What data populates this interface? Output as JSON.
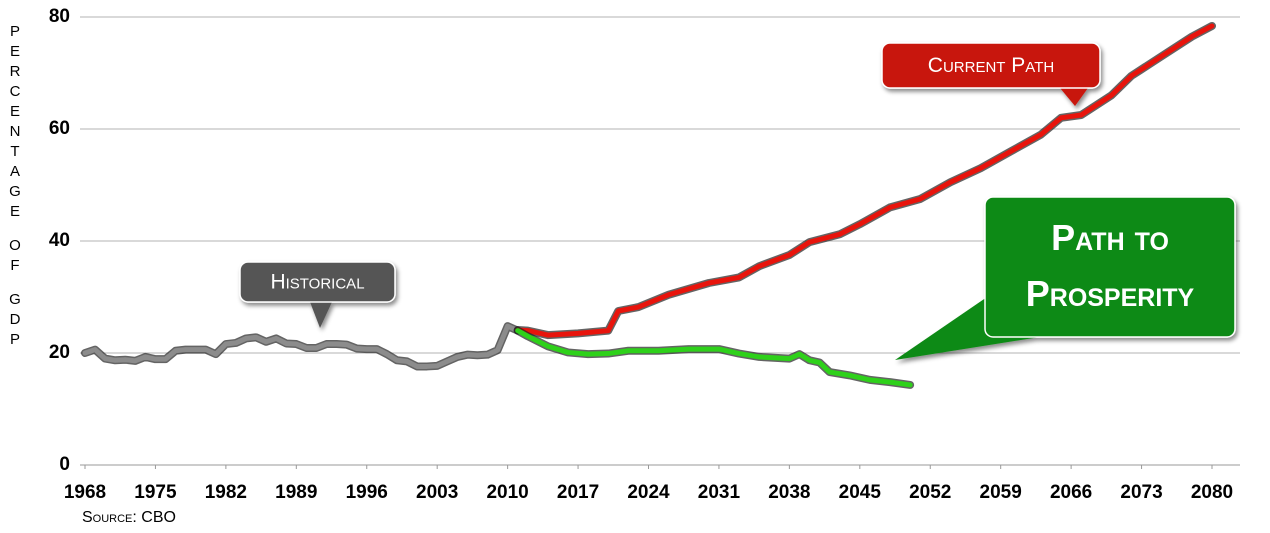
{
  "chart_data": {
    "type": "line",
    "y_label": "PERCENTAGE OF GDP",
    "source": "Source: CBO",
    "xlim": [
      1968,
      2080
    ],
    "xticks": [
      1968,
      1975,
      1982,
      1989,
      1996,
      2003,
      2010,
      2017,
      2024,
      2031,
      2038,
      2045,
      2052,
      2059,
      2066,
      2073,
      2080
    ],
    "ylim": [
      0,
      80
    ],
    "yticks": [
      0,
      20,
      40,
      60,
      80
    ],
    "grid": true,
    "series": [
      {
        "name": "Historical",
        "color": "#8c8c8c",
        "x": [
          1968,
          1969,
          1970,
          1971,
          1972,
          1973,
          1974,
          1975,
          1976,
          1977,
          1978,
          1979,
          1980,
          1981,
          1982,
          1983,
          1984,
          1985,
          1986,
          1987,
          1988,
          1989,
          1990,
          1991,
          1992,
          1993,
          1994,
          1995,
          1996,
          1997,
          1998,
          1999,
          2000,
          2001,
          2002,
          2003,
          2004,
          2005,
          2006,
          2007,
          2008,
          2009,
          2010,
          2011
        ],
        "values": [
          20.0,
          20.6,
          19.0,
          18.7,
          18.8,
          18.6,
          19.3,
          18.9,
          18.9,
          20.4,
          20.6,
          20.6,
          20.6,
          19.8,
          21.6,
          21.8,
          22.6,
          22.8,
          22.0,
          22.6,
          21.7,
          21.6,
          20.9,
          20.9,
          21.6,
          21.6,
          21.5,
          20.8,
          20.7,
          20.7,
          19.8,
          18.7,
          18.5,
          17.6,
          17.6,
          17.7,
          18.5,
          19.3,
          19.7,
          19.6,
          19.7,
          20.5,
          24.8,
          24.0
        ]
      },
      {
        "name": "Current Path",
        "color": "#e8140c",
        "x": [
          2011,
          2012,
          2014,
          2017,
          2020,
          2021,
          2023,
          2026,
          2030,
          2033,
          2035,
          2038,
          2040,
          2043,
          2045,
          2048,
          2051,
          2054,
          2057,
          2060,
          2063,
          2065,
          2067,
          2070,
          2072,
          2075,
          2078,
          2080
        ],
        "values": [
          24.1,
          24.0,
          23.2,
          23.5,
          24.0,
          27.5,
          28.2,
          30.4,
          32.5,
          33.5,
          35.5,
          37.5,
          39.8,
          41.2,
          43.0,
          46.0,
          47.5,
          50.5,
          53.0,
          56.0,
          59.0,
          62.0,
          62.5,
          66.0,
          69.5,
          73.0,
          76.5,
          78.4
        ]
      },
      {
        "name": "Path to Prosperity",
        "color": "#2ed11a",
        "x": [
          2011,
          2012,
          2014,
          2016,
          2018,
          2020,
          2022,
          2025,
          2028,
          2031,
          2033,
          2035,
          2038,
          2039,
          2040,
          2041,
          2042,
          2044,
          2046,
          2048,
          2050
        ],
        "values": [
          24.0,
          23.0,
          21.2,
          20.1,
          19.8,
          19.9,
          20.4,
          20.4,
          20.7,
          20.7,
          19.9,
          19.3,
          19.0,
          19.8,
          18.7,
          18.3,
          16.6,
          16.0,
          15.2,
          14.8,
          14.3
        ]
      }
    ]
  }
}
